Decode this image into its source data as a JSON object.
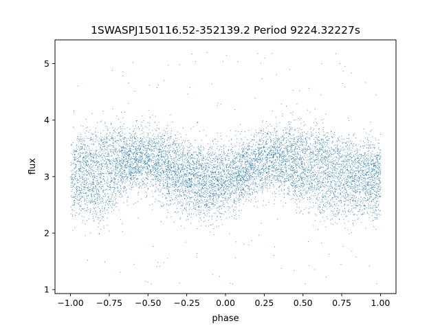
{
  "chart_data": {
    "type": "scatter",
    "title": "1SWASPJ150116.52-352139.2 Period 9224.32227s",
    "xlabel": "phase",
    "ylabel": "flux",
    "xlim": [
      -1.1,
      1.1
    ],
    "ylim": [
      0.93,
      5.42
    ],
    "xticks": [
      -1.0,
      -0.75,
      -0.5,
      -0.25,
      0.0,
      0.25,
      0.5,
      0.75,
      1.0
    ],
    "xtick_labels": [
      "−1.00",
      "−0.75",
      "−0.50",
      "−0.25",
      "0.00",
      "0.25",
      "0.50",
      "0.75",
      "1.00"
    ],
    "yticks": [
      1,
      2,
      3,
      4,
      5
    ],
    "ytick_labels": [
      "1",
      "2",
      "3",
      "4",
      "5"
    ],
    "grid": false,
    "legend": "none",
    "point_color": "#1f77b4",
    "series": [
      {
        "phase_range": [
          -1.0,
          1.0
        ],
        "approx_point_count": 40000,
        "flux_profile": {
          "phase": [
            -1.0,
            -0.9,
            -0.8,
            -0.7,
            -0.6,
            -0.5,
            -0.4,
            -0.3,
            -0.2,
            -0.1,
            0.0,
            0.1,
            0.2,
            0.3,
            0.4,
            0.5,
            0.6,
            0.7,
            0.8,
            0.9,
            1.0
          ],
          "upper_branch": [
            3.2,
            3.3,
            3.38,
            3.42,
            3.42,
            3.4,
            3.35,
            3.25,
            3.15,
            3.1,
            3.1,
            3.2,
            3.3,
            3.38,
            3.42,
            3.42,
            3.4,
            3.35,
            3.25,
            3.15,
            3.2
          ],
          "lower_branch": [
            2.75,
            2.7,
            2.7,
            2.95,
            3.2,
            3.25,
            3.0,
            2.8,
            2.72,
            2.7,
            2.75,
            2.95,
            3.15,
            3.2,
            3.1,
            2.9,
            2.78,
            2.72,
            2.7,
            2.72,
            2.75
          ],
          "spread": 0.35
        },
        "outlier_flux_range": [
          1.1,
          5.2
        ]
      }
    ]
  }
}
